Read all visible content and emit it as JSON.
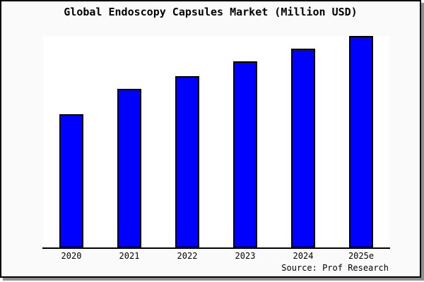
{
  "figure": {
    "title": "Global Endoscopy Capsules Market (Million USD)",
    "source_label": "Source: Prof Research"
  },
  "chart_data": {
    "type": "bar",
    "title": "Global Endoscopy Capsules Market (Million USD)",
    "categories": [
      "2020",
      "2021",
      "2022",
      "2023",
      "2024",
      "2025e"
    ],
    "values": [
      63,
      75,
      81,
      88,
      94,
      100
    ],
    "values_note": "y-axis has no tick labels; values are estimated relative bar heights as % of tallest bar (2025e = 100)",
    "xlabel": "",
    "ylabel": "",
    "ylim": [
      0,
      100
    ],
    "grid": false,
    "legend": false,
    "y_axis_visible": false,
    "source": "Source: Prof Research",
    "colors": {
      "bar_fill": "#0000ff",
      "bar_border": "#000000",
      "plot_background": "#ffffff",
      "figure_background": "#fafafa",
      "frame_border": "#000000",
      "shadow": "#8f8f8f"
    }
  }
}
